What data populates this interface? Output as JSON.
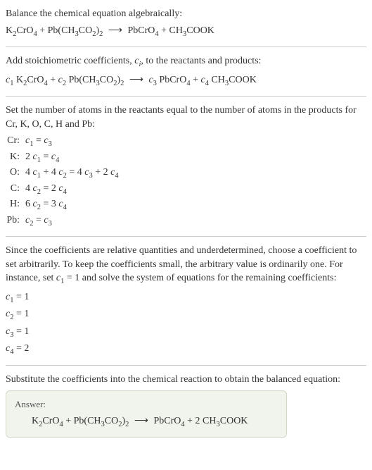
{
  "colors": {
    "background": "#ffffff",
    "text": "#333333",
    "divider": "#cccccc",
    "answer_bg": "#f0f4ed",
    "answer_border": "#d0d8c8",
    "answer_label": "#555555"
  },
  "fonts": {
    "body_family": "Georgia, 'Times New Roman', serif",
    "body_size": 14,
    "answer_label_size": 13
  },
  "section1": {
    "title": "Balance the chemical equation algebraically:",
    "equation_html": "K<sub>2</sub>CrO<sub>4</sub> + Pb(CH<sub>3</sub>CO<sub>2</sub>)<sub>2</sub> <span class=\"arrow\">⟶</span> PbCrO<sub>4</sub> + CH<sub>3</sub>COOK"
  },
  "section2": {
    "title_html": "Add stoichiometric coefficients, <span class=\"italic\">c<sub>i</sub></span>, to the reactants and products:",
    "equation_html": "<span class=\"italic\">c</span><sub>1</sub> K<sub>2</sub>CrO<sub>4</sub> + <span class=\"italic\">c</span><sub>2</sub> Pb(CH<sub>3</sub>CO<sub>2</sub>)<sub>2</sub> <span class=\"arrow\">⟶</span> <span class=\"italic\">c</span><sub>3</sub> PbCrO<sub>4</sub> + <span class=\"italic\">c</span><sub>4</sub> CH<sub>3</sub>COOK"
  },
  "section3": {
    "title": "Set the number of atoms in the reactants equal to the number of atoms in the products for Cr, K, O, C, H and Pb:",
    "atoms": [
      {
        "label": "Cr:",
        "eq_html": "<span class=\"italic\">c</span><sub>1</sub> = <span class=\"italic\">c</span><sub>3</sub>"
      },
      {
        "label": "K:",
        "eq_html": "2 <span class=\"italic\">c</span><sub>1</sub> = <span class=\"italic\">c</span><sub>4</sub>"
      },
      {
        "label": "O:",
        "eq_html": "4 <span class=\"italic\">c</span><sub>1</sub> + 4 <span class=\"italic\">c</span><sub>2</sub> = 4 <span class=\"italic\">c</span><sub>3</sub> + 2 <span class=\"italic\">c</span><sub>4</sub>"
      },
      {
        "label": "C:",
        "eq_html": "4 <span class=\"italic\">c</span><sub>2</sub> = 2 <span class=\"italic\">c</span><sub>4</sub>"
      },
      {
        "label": "H:",
        "eq_html": "6 <span class=\"italic\">c</span><sub>2</sub> = 3 <span class=\"italic\">c</span><sub>4</sub>"
      },
      {
        "label": "Pb:",
        "eq_html": "<span class=\"italic\">c</span><sub>2</sub> = <span class=\"italic\">c</span><sub>3</sub>"
      }
    ]
  },
  "section4": {
    "title_html": "Since the coefficients are relative quantities and underdetermined, choose a coefficient to set arbitrarily. To keep the coefficients small, the arbitrary value is ordinarily one. For instance, set <span class=\"italic\">c</span><sub>1</sub> = 1 and solve the system of equations for the remaining coefficients:",
    "coeffs": [
      {
        "html": "<span class=\"italic\">c</span><sub>1</sub> = 1"
      },
      {
        "html": "<span class=\"italic\">c</span><sub>2</sub> = 1"
      },
      {
        "html": "<span class=\"italic\">c</span><sub>3</sub> = 1"
      },
      {
        "html": "<span class=\"italic\">c</span><sub>4</sub> = 2"
      }
    ]
  },
  "section5": {
    "title": "Substitute the coefficients into the chemical reaction to obtain the balanced equation:",
    "answer_label": "Answer:",
    "answer_html": "K<sub>2</sub>CrO<sub>4</sub> + Pb(CH<sub>3</sub>CO<sub>2</sub>)<sub>2</sub> <span class=\"arrow\">⟶</span> PbCrO<sub>4</sub> + 2 CH<sub>3</sub>COOK"
  }
}
